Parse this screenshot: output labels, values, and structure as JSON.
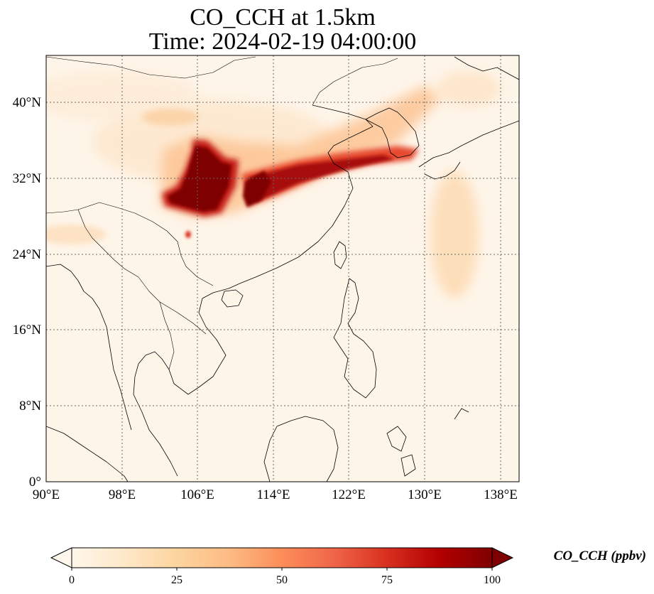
{
  "title": {
    "line1": "CO_CCH at 1.5km",
    "line2": "Time: 2024-02-19 04:00:00"
  },
  "map": {
    "lon_range": [
      90,
      139.5
    ],
    "lat_range": [
      0,
      45
    ],
    "lon_ticks": [
      "90°E",
      "98°E",
      "106°E",
      "114°E",
      "122°E",
      "130°E",
      "138°E"
    ],
    "lat_ticks": [
      "0°",
      "8°N",
      "16°N",
      "24°N",
      "32°N",
      "40°N"
    ],
    "gridlines": true,
    "colormap": "OrRd"
  },
  "colorbar": {
    "label": "CO_CCH (ppbv)",
    "ticks": [
      "0",
      "25",
      "50",
      "75",
      "100"
    ],
    "range": [
      0,
      100
    ],
    "extend": "both",
    "colors": [
      "#fff7ec",
      "#fee8c8",
      "#fdd49e",
      "#fdbb84",
      "#fc8d59",
      "#ef6548",
      "#d7301f",
      "#b30000",
      "#7f0000"
    ]
  }
}
